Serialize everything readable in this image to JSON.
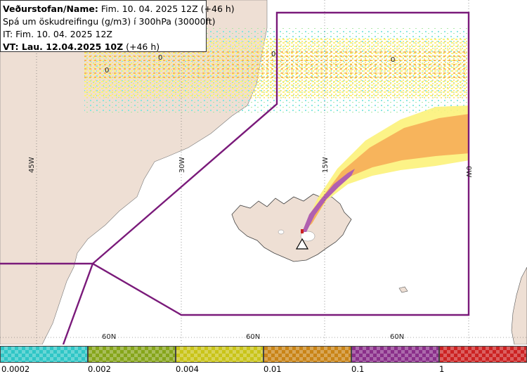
{
  "header": {
    "line1_bold": "Veðurstofan/Name:",
    "line1_rest": " Fim. 10. 04. 2025 12Z (+46 h)",
    "line2": "Spá um öskudreifingu (g/m3) í 300hPa (30000ft)",
    "line3": "IT: Fim. 10. 04. 2025 12Z",
    "line4_bold": "VT: Lau. 12.04.2025 10Z",
    "line4_rest": " (+46 h)"
  },
  "map": {
    "longitude_labels": [
      "45W",
      "30W",
      "15W",
      "0W"
    ],
    "latitude_labels": [
      "60N",
      "60N",
      "60N"
    ],
    "contour_labels": [
      "0",
      "0",
      "0",
      "0"
    ],
    "colors": {
      "land": "#eedfd4",
      "sea": "#ffffff",
      "boundary": "#7a1a7a",
      "ash_low": "#fcf27a",
      "ash_mid": "#f7b45c",
      "ash_high": "#b060b0",
      "ash_trace": "#7fe4e0"
    },
    "volcano_icon": "volcano-warning-triangle-icon"
  },
  "legend": {
    "bins": [
      {
        "color": "#2fc6c6",
        "name": "cyan"
      },
      {
        "color": "#86a51a",
        "name": "olive"
      },
      {
        "color": "#c9c418",
        "name": "yellow"
      },
      {
        "color": "#c98416",
        "name": "orange"
      },
      {
        "color": "#8a2f8a",
        "name": "purple"
      },
      {
        "color": "#cc2222",
        "name": "red"
      }
    ],
    "ticks": [
      "0.0002",
      "0.002",
      "0.004",
      "0.01",
      "0.1",
      "1"
    ]
  }
}
